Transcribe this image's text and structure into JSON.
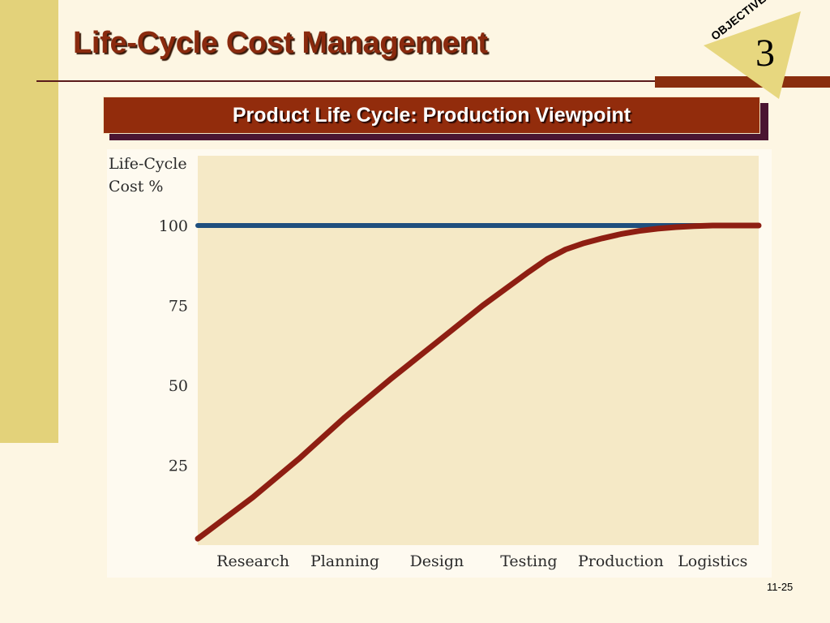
{
  "slide": {
    "title": "Life-Cycle Cost Management",
    "objective_label": "OBJECTIVE",
    "objective_number": "3",
    "banner": "Product Life Cycle:  Production Viewpoint",
    "page_number": "11-25"
  },
  "colors": {
    "background": "#fdf6e3",
    "side_bar": "#e3d27a",
    "title_text": "#8a2a0e",
    "banner_fill": "#922c0c",
    "banner_shadow": "#4a1532",
    "objective_badge": "#e7d77f",
    "plot_background": "#f5e9c6",
    "reference_line": "#1f4f7e",
    "curve_line": "#8e1e12"
  },
  "chart_data": {
    "type": "line",
    "ylabel_lines": [
      "Life-Cycle",
      "Cost %"
    ],
    "xlabel": "",
    "ylim": [
      0,
      100
    ],
    "yticks": [
      25,
      50,
      75,
      100
    ],
    "categories": [
      "Research",
      "Planning",
      "Design",
      "Testing",
      "Production",
      "Logistics"
    ],
    "xlim": [
      -0.6,
      5.5
    ],
    "grid": false,
    "legend": "none",
    "series": [
      {
        "role": "reference",
        "color": "#1f4f7e",
        "x": [
          -0.6,
          5.5
        ],
        "y": [
          100,
          100
        ]
      },
      {
        "role": "curve",
        "color": "#8e1e12",
        "x": [
          -0.6,
          0,
          0.5,
          1,
          1.5,
          2,
          2.5,
          3,
          3.2,
          3.4,
          3.6,
          3.8,
          4,
          4.2,
          4.4,
          4.6,
          4.8,
          5,
          5.2,
          5.5
        ],
        "y": [
          2,
          15,
          27,
          40,
          52,
          63.5,
          75,
          85.5,
          89.5,
          92.5,
          94.5,
          96,
          97.3,
          98.3,
          99,
          99.5,
          99.8,
          100,
          100,
          100
        ]
      }
    ]
  }
}
